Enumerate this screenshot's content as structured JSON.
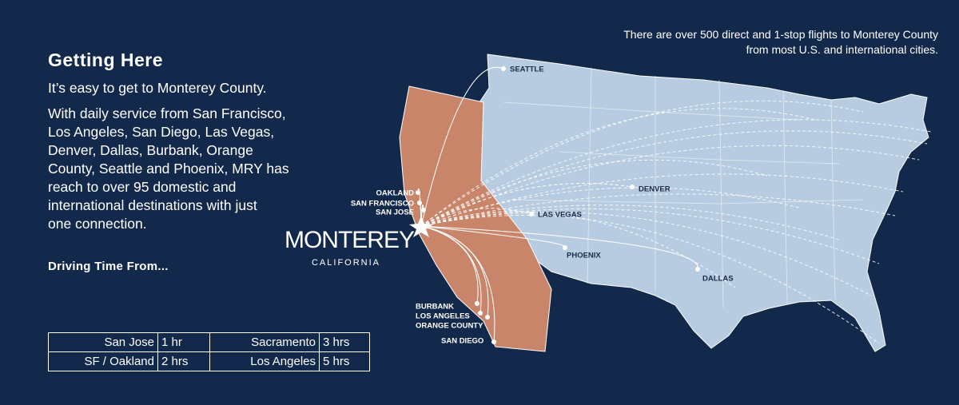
{
  "header": {
    "title": "Getting Here"
  },
  "intro": "It’s easy to get to Monterey County.",
  "body": [
    "With daily service from San Francisco,",
    "Los Angeles, San Diego, Las Vegas,",
    "Denver, Dallas, Burbank, Orange",
    "County, Seattle and Phoenix, MRY has",
    "reach to over 95 domestic and",
    "international destinations with just",
    "one connection."
  ],
  "driving": {
    "heading": "Driving Time From...",
    "rows": [
      [
        "San Jose",
        "1 hr",
        "Sacramento",
        "3 hrs"
      ],
      [
        "SF / Oakland",
        "2 hrs",
        "Los Angeles",
        "5 hrs"
      ]
    ]
  },
  "map": {
    "note": [
      "There are over 500 direct and 1-stop flights to Monterey County",
      "from most U.S. and international cities."
    ],
    "logo": "MONTEREY",
    "logo_sub": "CALIFORNIA",
    "cities": [
      "SEATTLE",
      "OAKLAND",
      "SAN FRANCISCO",
      "SAN JOSE",
      "LAS VEGAS",
      "DENVER",
      "PHOENIX",
      "DALLAS",
      "BURBANK",
      "LOS ANGELES",
      "ORANGE COUNTY",
      "SAN DIEGO"
    ]
  }
}
